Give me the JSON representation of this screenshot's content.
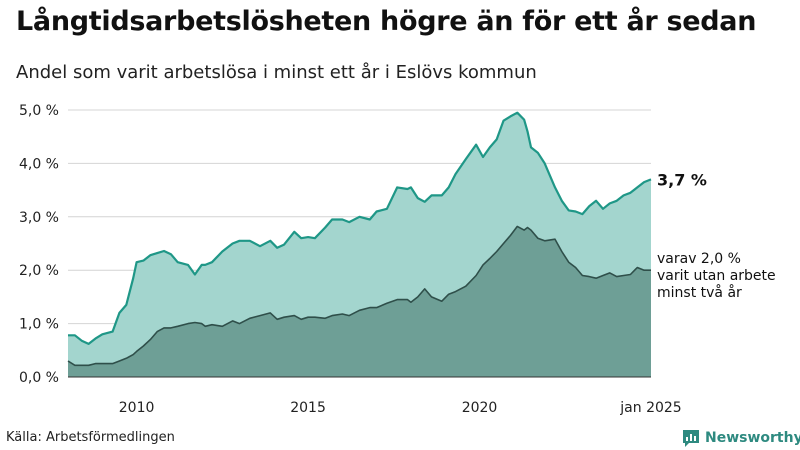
{
  "title": "Långtidsarbetslösheten högre än för ett år sedan",
  "subtitle": "Andel som varit arbetslösa i minst ett år i Eslövs kommun",
  "source": "Källa: Arbetsförmedlingen",
  "brand": "Newsworthy",
  "colors": {
    "total_fill": "#a3d5ce",
    "total_line": "#1f9787",
    "long_fill": "#6e9f96",
    "long_line": "#2f4f4a",
    "grid": "#d4d4d4"
  },
  "chart_data": {
    "type": "area",
    "x_unit": "year",
    "xlim": [
      2008.0,
      2025.0
    ],
    "ylim": [
      0,
      5
    ],
    "yticks": [
      {
        "value": 0,
        "label": "0,0 %"
      },
      {
        "value": 1,
        "label": "1,0 %"
      },
      {
        "value": 2,
        "label": "2,0 %"
      },
      {
        "value": 3,
        "label": "3,0 %"
      },
      {
        "value": 4,
        "label": "4,0 %"
      },
      {
        "value": 5,
        "label": "5,0 %"
      }
    ],
    "xticks": [
      {
        "value": 2010,
        "label": "2010"
      },
      {
        "value": 2015,
        "label": "2015"
      },
      {
        "value": 2020,
        "label": "2020"
      },
      {
        "value": 2025,
        "label": "jan 2025"
      }
    ],
    "grid": true,
    "series": [
      {
        "id": "total",
        "x": [
          2008.0,
          2008.2,
          2008.4,
          2008.6,
          2008.8,
          2009.0,
          2009.3,
          2009.5,
          2009.7,
          2009.9,
          2010.0,
          2010.2,
          2010.4,
          2010.6,
          2010.8,
          2011.0,
          2011.2,
          2011.5,
          2011.7,
          2011.9,
          2012.0,
          2012.2,
          2012.5,
          2012.8,
          2013.0,
          2013.3,
          2013.6,
          2013.9,
          2014.1,
          2014.3,
          2014.6,
          2014.8,
          2015.0,
          2015.2,
          2015.5,
          2015.7,
          2016.0,
          2016.2,
          2016.5,
          2016.8,
          2017.0,
          2017.3,
          2017.6,
          2017.9,
          2018.0,
          2018.2,
          2018.4,
          2018.6,
          2018.9,
          2019.1,
          2019.3,
          2019.6,
          2019.9,
          2020.1,
          2020.3,
          2020.5,
          2020.7,
          2020.9,
          2021.1,
          2021.3,
          2021.4,
          2021.5,
          2021.7,
          2021.9,
          2022.2,
          2022.4,
          2022.6,
          2022.8,
          2023.0,
          2023.2,
          2023.4,
          2023.6,
          2023.8,
          2024.0,
          2024.2,
          2024.4,
          2024.6,
          2024.8,
          2025.0
        ],
        "values": [
          0.78,
          0.78,
          0.68,
          0.62,
          0.72,
          0.8,
          0.85,
          1.2,
          1.35,
          1.85,
          2.15,
          2.18,
          2.28,
          2.32,
          2.36,
          2.3,
          2.15,
          2.1,
          1.92,
          2.1,
          2.1,
          2.15,
          2.35,
          2.5,
          2.55,
          2.55,
          2.45,
          2.55,
          2.42,
          2.48,
          2.72,
          2.6,
          2.62,
          2.6,
          2.8,
          2.95,
          2.95,
          2.9,
          3.0,
          2.95,
          3.1,
          3.15,
          3.55,
          3.52,
          3.55,
          3.35,
          3.28,
          3.4,
          3.4,
          3.55,
          3.8,
          4.08,
          4.35,
          4.12,
          4.3,
          4.45,
          4.8,
          4.88,
          4.95,
          4.82,
          4.6,
          4.3,
          4.2,
          4.0,
          3.55,
          3.3,
          3.12,
          3.1,
          3.05,
          3.2,
          3.3,
          3.15,
          3.25,
          3.3,
          3.4,
          3.45,
          3.55,
          3.65,
          3.7
        ]
      },
      {
        "id": "long",
        "x": [
          2008.0,
          2008.2,
          2008.4,
          2008.6,
          2008.8,
          2009.0,
          2009.3,
          2009.5,
          2009.7,
          2009.9,
          2010.0,
          2010.2,
          2010.4,
          2010.6,
          2010.8,
          2011.0,
          2011.2,
          2011.5,
          2011.7,
          2011.9,
          2012.0,
          2012.2,
          2012.5,
          2012.8,
          2013.0,
          2013.3,
          2013.6,
          2013.9,
          2014.1,
          2014.3,
          2014.6,
          2014.8,
          2015.0,
          2015.2,
          2015.5,
          2015.7,
          2016.0,
          2016.2,
          2016.5,
          2016.8,
          2017.0,
          2017.3,
          2017.6,
          2017.9,
          2018.0,
          2018.2,
          2018.4,
          2018.6,
          2018.9,
          2019.1,
          2019.3,
          2019.6,
          2019.9,
          2020.1,
          2020.3,
          2020.5,
          2020.7,
          2020.9,
          2021.1,
          2021.3,
          2021.4,
          2021.5,
          2021.7,
          2021.9,
          2022.2,
          2022.4,
          2022.6,
          2022.8,
          2023.0,
          2023.2,
          2023.4,
          2023.6,
          2023.8,
          2024.0,
          2024.2,
          2024.4,
          2024.6,
          2024.8,
          2025.0
        ],
        "values": [
          0.3,
          0.22,
          0.22,
          0.22,
          0.25,
          0.25,
          0.25,
          0.3,
          0.35,
          0.42,
          0.48,
          0.58,
          0.7,
          0.85,
          0.92,
          0.92,
          0.95,
          1.0,
          1.02,
          1.0,
          0.95,
          0.98,
          0.95,
          1.05,
          1.0,
          1.1,
          1.15,
          1.2,
          1.08,
          1.12,
          1.15,
          1.08,
          1.12,
          1.12,
          1.1,
          1.15,
          1.18,
          1.15,
          1.25,
          1.3,
          1.3,
          1.38,
          1.45,
          1.45,
          1.4,
          1.5,
          1.65,
          1.5,
          1.42,
          1.55,
          1.6,
          1.7,
          1.9,
          2.1,
          2.22,
          2.35,
          2.5,
          2.65,
          2.82,
          2.75,
          2.8,
          2.75,
          2.6,
          2.55,
          2.58,
          2.35,
          2.15,
          2.05,
          1.9,
          1.88,
          1.85,
          1.9,
          1.95,
          1.88,
          1.9,
          1.92,
          2.05,
          2.0,
          2.0
        ]
      }
    ],
    "annotations": {
      "total_label": "3,7 %",
      "long_lines": [
        "varav 2,0 %",
        "varit utan arbete",
        "minst två år"
      ]
    }
  }
}
